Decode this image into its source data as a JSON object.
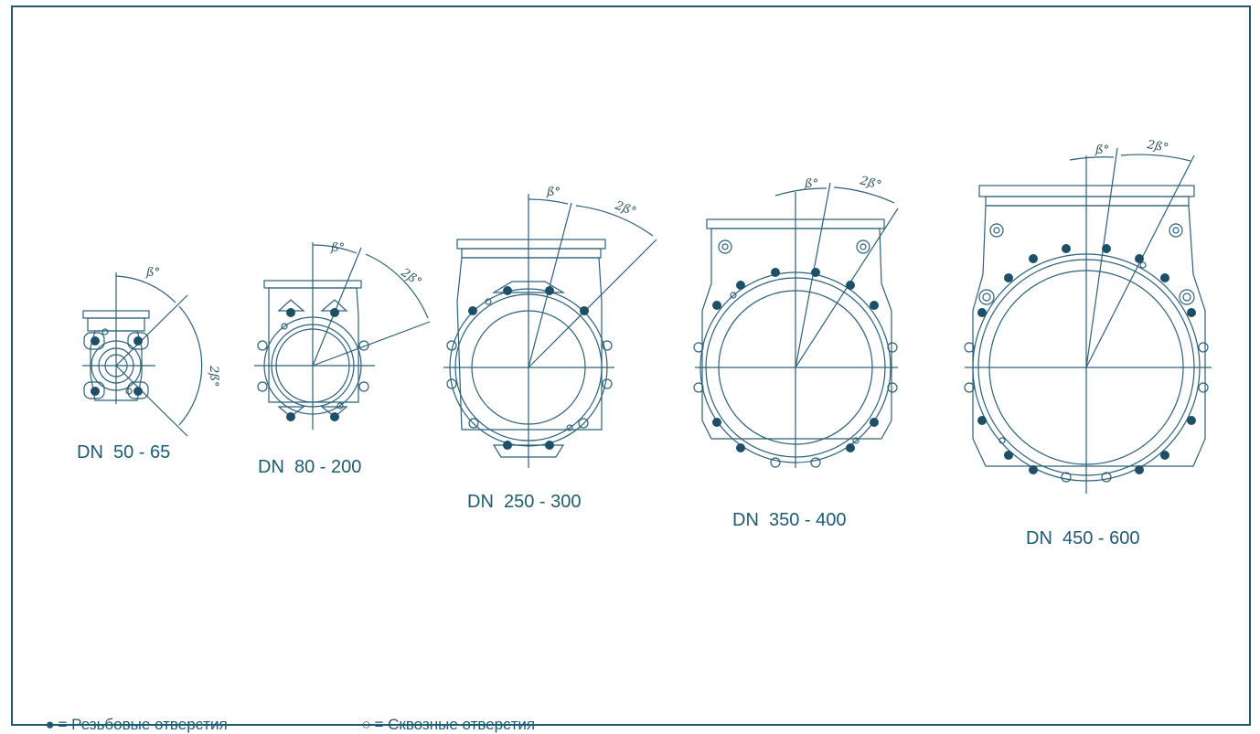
{
  "colors": {
    "line": "#2c6079",
    "dot": "#1d4f68",
    "frame": "#21586e",
    "text": "#1e5a73"
  },
  "angle_labels": {
    "beta": "ß°",
    "two_beta": "2ß°"
  },
  "flanges": [
    {
      "label": "DN  50 - 65"
    },
    {
      "label": "DN  80 - 200"
    },
    {
      "label": "DN  250 - 300"
    },
    {
      "label": "DN  350 - 400"
    },
    {
      "label": "DN  450 - 600"
    }
  ],
  "legend": {
    "threaded": {
      "symbol": "●",
      "text": "= Резьбовые отверстия"
    },
    "through": {
      "symbol": "○",
      "text": "= Сквозные отверстия"
    }
  }
}
